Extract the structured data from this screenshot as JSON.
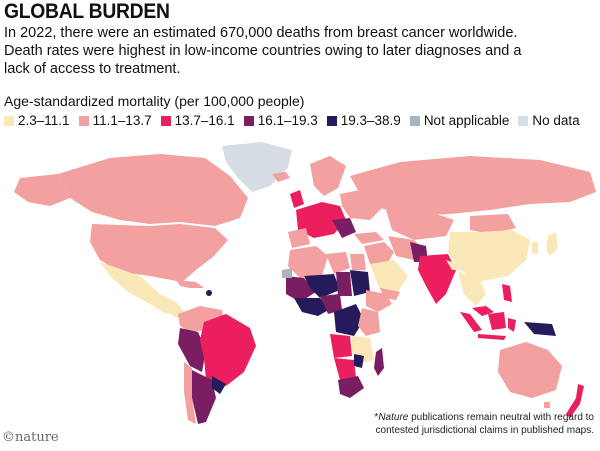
{
  "title": "GLOBAL BURDEN",
  "subtitle": "In 2022, there were an estimated 670,000 deaths from breast cancer worldwide. Death rates were highest in low-income countries owing to later diagnoses and a lack of access to treatment.",
  "legend": {
    "title": "Age-standardized mortality (per 100,000 people)",
    "items": [
      {
        "label": "2.3–11.1",
        "color": "#fae7b8"
      },
      {
        "label": "11.1–13.7",
        "color": "#f2a0a0"
      },
      {
        "label": "13.7–16.1",
        "color": "#ec1f5e"
      },
      {
        "label": "16.1–19.3",
        "color": "#7a1e64"
      },
      {
        "label": "19.3–38.9",
        "color": "#241a5c"
      },
      {
        "label": "Not applicable",
        "color": "#a9b4c0"
      },
      {
        "label": "No data",
        "color": "#d7dde4"
      }
    ]
  },
  "footnote": {
    "italic": "Nature",
    "text": " publications remain neutral with regard to contested jurisdictional claims in published maps."
  },
  "credit": "©nature"
}
